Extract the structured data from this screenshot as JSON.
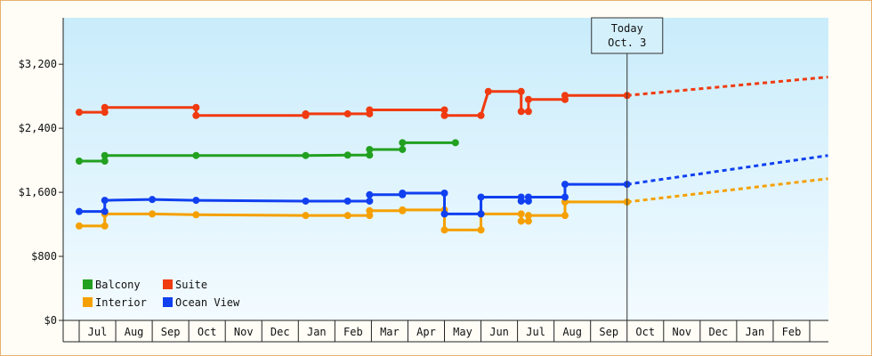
{
  "chart_data": {
    "type": "line",
    "y_ticks": [
      "$0",
      "$800",
      "$1,600",
      "$2,400",
      "$3,200"
    ],
    "y_tick_values": [
      0,
      800,
      1600,
      2400,
      3200
    ],
    "ylim": [
      0,
      3780
    ],
    "x_months": [
      "Jul",
      "Aug",
      "Sep",
      "Oct",
      "Nov",
      "Dec",
      "Jan",
      "Feb",
      "Mar",
      "Apr",
      "May",
      "Jun",
      "Jul",
      "Aug",
      "Sep",
      "Oct",
      "Nov",
      "Dec",
      "Jan",
      "Feb"
    ],
    "today": {
      "line1": "Today",
      "line2": "Oct. 3",
      "x": 15.0
    },
    "grid": false,
    "legend_position": "bottom-left",
    "series": [
      {
        "name": "Balcony",
        "color": "#22a020",
        "points": [
          [
            0,
            1990
          ],
          [
            0.7,
            1990
          ],
          [
            0.7,
            2060
          ],
          [
            3.2,
            2060
          ],
          [
            6.2,
            2060
          ],
          [
            7.35,
            2065
          ],
          [
            7.95,
            2065
          ],
          [
            7.95,
            2135
          ],
          [
            8.85,
            2135
          ],
          [
            8.85,
            2220
          ],
          [
            10.3,
            2220
          ]
        ],
        "projection": []
      },
      {
        "name": "Suite",
        "color": "#f03a10",
        "points": [
          [
            0,
            2600
          ],
          [
            0.7,
            2600
          ],
          [
            0.7,
            2660
          ],
          [
            3.2,
            2660
          ],
          [
            3.2,
            2560
          ],
          [
            6.2,
            2560
          ],
          [
            6.2,
            2580
          ],
          [
            7.35,
            2580
          ],
          [
            7.95,
            2580
          ],
          [
            7.95,
            2630
          ],
          [
            10.0,
            2630
          ],
          [
            10.0,
            2560
          ],
          [
            11.0,
            2560
          ],
          [
            11.2,
            2860
          ],
          [
            12.1,
            2860
          ],
          [
            12.1,
            2610
          ],
          [
            12.3,
            2610
          ],
          [
            12.3,
            2760
          ],
          [
            13.3,
            2760
          ],
          [
            13.3,
            2810
          ],
          [
            15.0,
            2810
          ]
        ],
        "projection": [
          [
            15.0,
            2810
          ],
          [
            20.5,
            3040
          ]
        ]
      },
      {
        "name": "Interior",
        "color": "#f5a000",
        "points": [
          [
            0,
            1180
          ],
          [
            0.7,
            1180
          ],
          [
            0.7,
            1330
          ],
          [
            2.0,
            1330
          ],
          [
            3.2,
            1320
          ],
          [
            6.2,
            1310
          ],
          [
            7.35,
            1310
          ],
          [
            7.95,
            1310
          ],
          [
            7.95,
            1370
          ],
          [
            8.85,
            1370
          ],
          [
            8.85,
            1380
          ],
          [
            10.0,
            1380
          ],
          [
            10.0,
            1130
          ],
          [
            11.0,
            1130
          ],
          [
            11.0,
            1330
          ],
          [
            12.1,
            1330
          ],
          [
            12.1,
            1240
          ],
          [
            12.3,
            1240
          ],
          [
            12.3,
            1310
          ],
          [
            13.3,
            1310
          ],
          [
            13.3,
            1480
          ],
          [
            15.0,
            1480
          ]
        ],
        "projection": [
          [
            15.0,
            1480
          ],
          [
            20.5,
            1770
          ]
        ]
      },
      {
        "name": "Ocean View",
        "color": "#1040f0",
        "points": [
          [
            0,
            1360
          ],
          [
            0.7,
            1360
          ],
          [
            0.7,
            1500
          ],
          [
            2.0,
            1510
          ],
          [
            3.2,
            1500
          ],
          [
            6.2,
            1490
          ],
          [
            7.35,
            1490
          ],
          [
            7.95,
            1490
          ],
          [
            7.95,
            1570
          ],
          [
            8.85,
            1570
          ],
          [
            8.85,
            1590
          ],
          [
            10.0,
            1590
          ],
          [
            10.0,
            1330
          ],
          [
            11.0,
            1330
          ],
          [
            11.0,
            1540
          ],
          [
            12.1,
            1540
          ],
          [
            12.1,
            1490
          ],
          [
            12.3,
            1490
          ],
          [
            12.3,
            1540
          ],
          [
            13.3,
            1540
          ],
          [
            13.3,
            1700
          ],
          [
            15.0,
            1700
          ]
        ],
        "projection": [
          [
            15.0,
            1700
          ],
          [
            20.5,
            2060
          ]
        ]
      }
    ]
  }
}
